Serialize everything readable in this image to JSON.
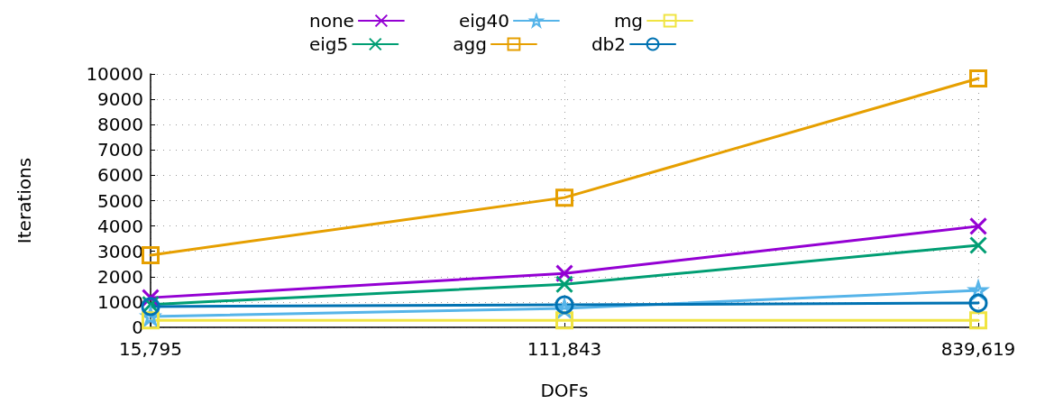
{
  "chart_data": {
    "type": "line",
    "xlabel": "DOFs",
    "ylabel": "Iterations",
    "categories": [
      "15,795",
      "111,843",
      "839,619"
    ],
    "ylim": [
      0,
      10000
    ],
    "yticks": [
      0,
      1000,
      2000,
      3000,
      4000,
      5000,
      6000,
      7000,
      8000,
      9000,
      10000
    ],
    "grid": true,
    "legend": "top",
    "line_style": "solid",
    "series": [
      {
        "name": "none",
        "color": "#9400d3",
        "marker": "cross",
        "values": [
          1170,
          2130,
          3990
        ]
      },
      {
        "name": "eig5",
        "color": "#009e73",
        "marker": "cross",
        "values": [
          900,
          1700,
          3240
        ]
      },
      {
        "name": "eig40",
        "color": "#56b4e9",
        "marker": "star",
        "values": [
          430,
          750,
          1460
        ]
      },
      {
        "name": "agg",
        "color": "#e69f00",
        "marker": "square",
        "values": [
          2850,
          5120,
          9820
        ]
      },
      {
        "name": "mg",
        "color": "#f0e442",
        "marker": "square",
        "values": [
          280,
          280,
          280
        ]
      },
      {
        "name": "db2",
        "color": "#0072b2",
        "marker": "circle",
        "values": [
          820,
          890,
          960
        ]
      }
    ]
  }
}
